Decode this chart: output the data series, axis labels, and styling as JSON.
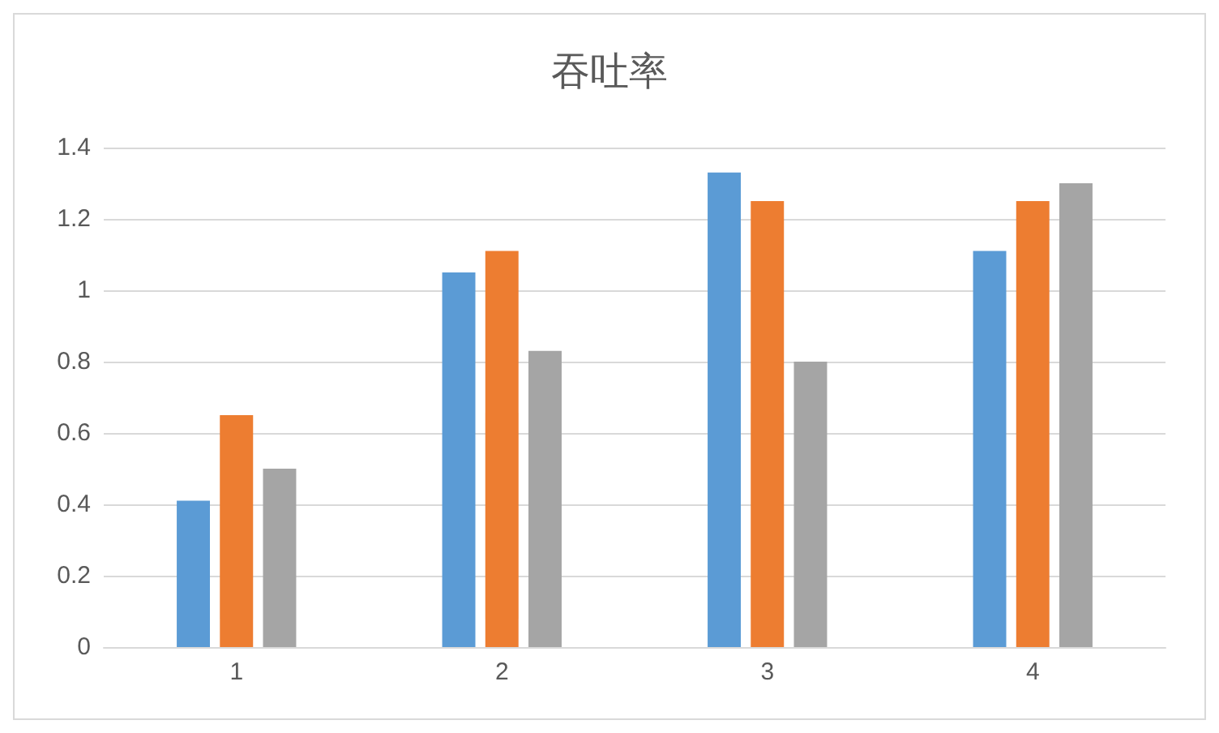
{
  "chart_data": {
    "type": "bar",
    "title": "吞吐率",
    "categories": [
      "1",
      "2",
      "3",
      "4"
    ],
    "series": [
      {
        "color": "#5b9bd5",
        "values": [
          0.41,
          1.05,
          1.33,
          1.11
        ]
      },
      {
        "color": "#ed7d31",
        "values": [
          0.65,
          1.11,
          1.25,
          1.25
        ]
      },
      {
        "color": "#a5a5a5",
        "values": [
          0.5,
          0.83,
          0.8,
          1.3
        ]
      }
    ],
    "ylim": [
      0,
      1.4
    ],
    "yticks": [
      0,
      0.2,
      0.4,
      0.6,
      0.8,
      1,
      1.2,
      1.4
    ],
    "grid": "y"
  }
}
